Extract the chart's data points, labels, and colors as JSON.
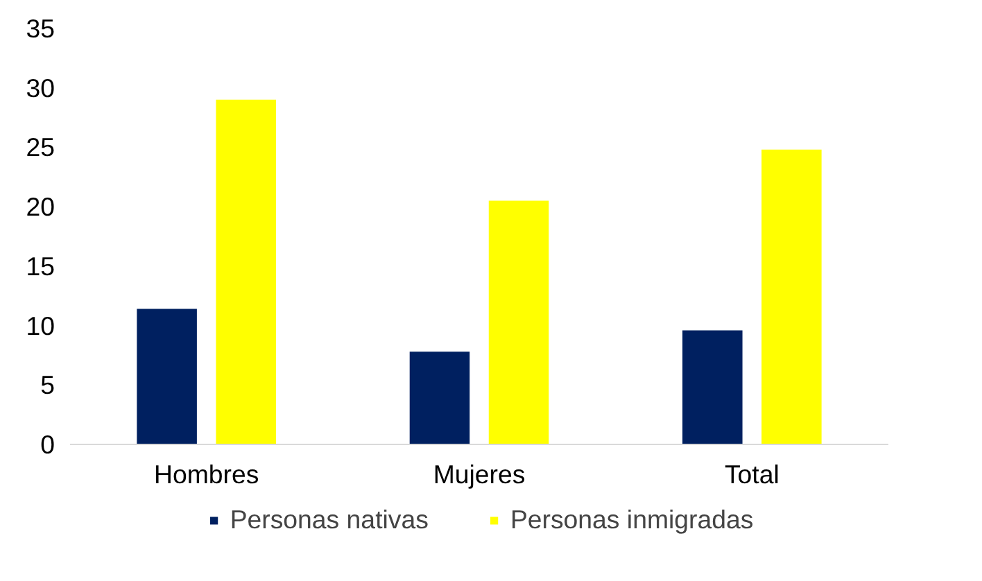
{
  "chart_data": {
    "type": "bar",
    "categories": [
      "Hombres",
      "Mujeres",
      "Total"
    ],
    "series": [
      {
        "name": "Personas nativas",
        "color": "#002060",
        "values": [
          11.4,
          7.8,
          9.6
        ]
      },
      {
        "name": "Personas inmigradas",
        "color": "#ffff00",
        "values": [
          29.0,
          20.5,
          24.8
        ]
      }
    ],
    "ylim": [
      0,
      35
    ],
    "yticks": [
      0,
      5,
      10,
      15,
      20,
      25,
      30,
      35
    ],
    "grid": false,
    "legend": "bottom"
  }
}
